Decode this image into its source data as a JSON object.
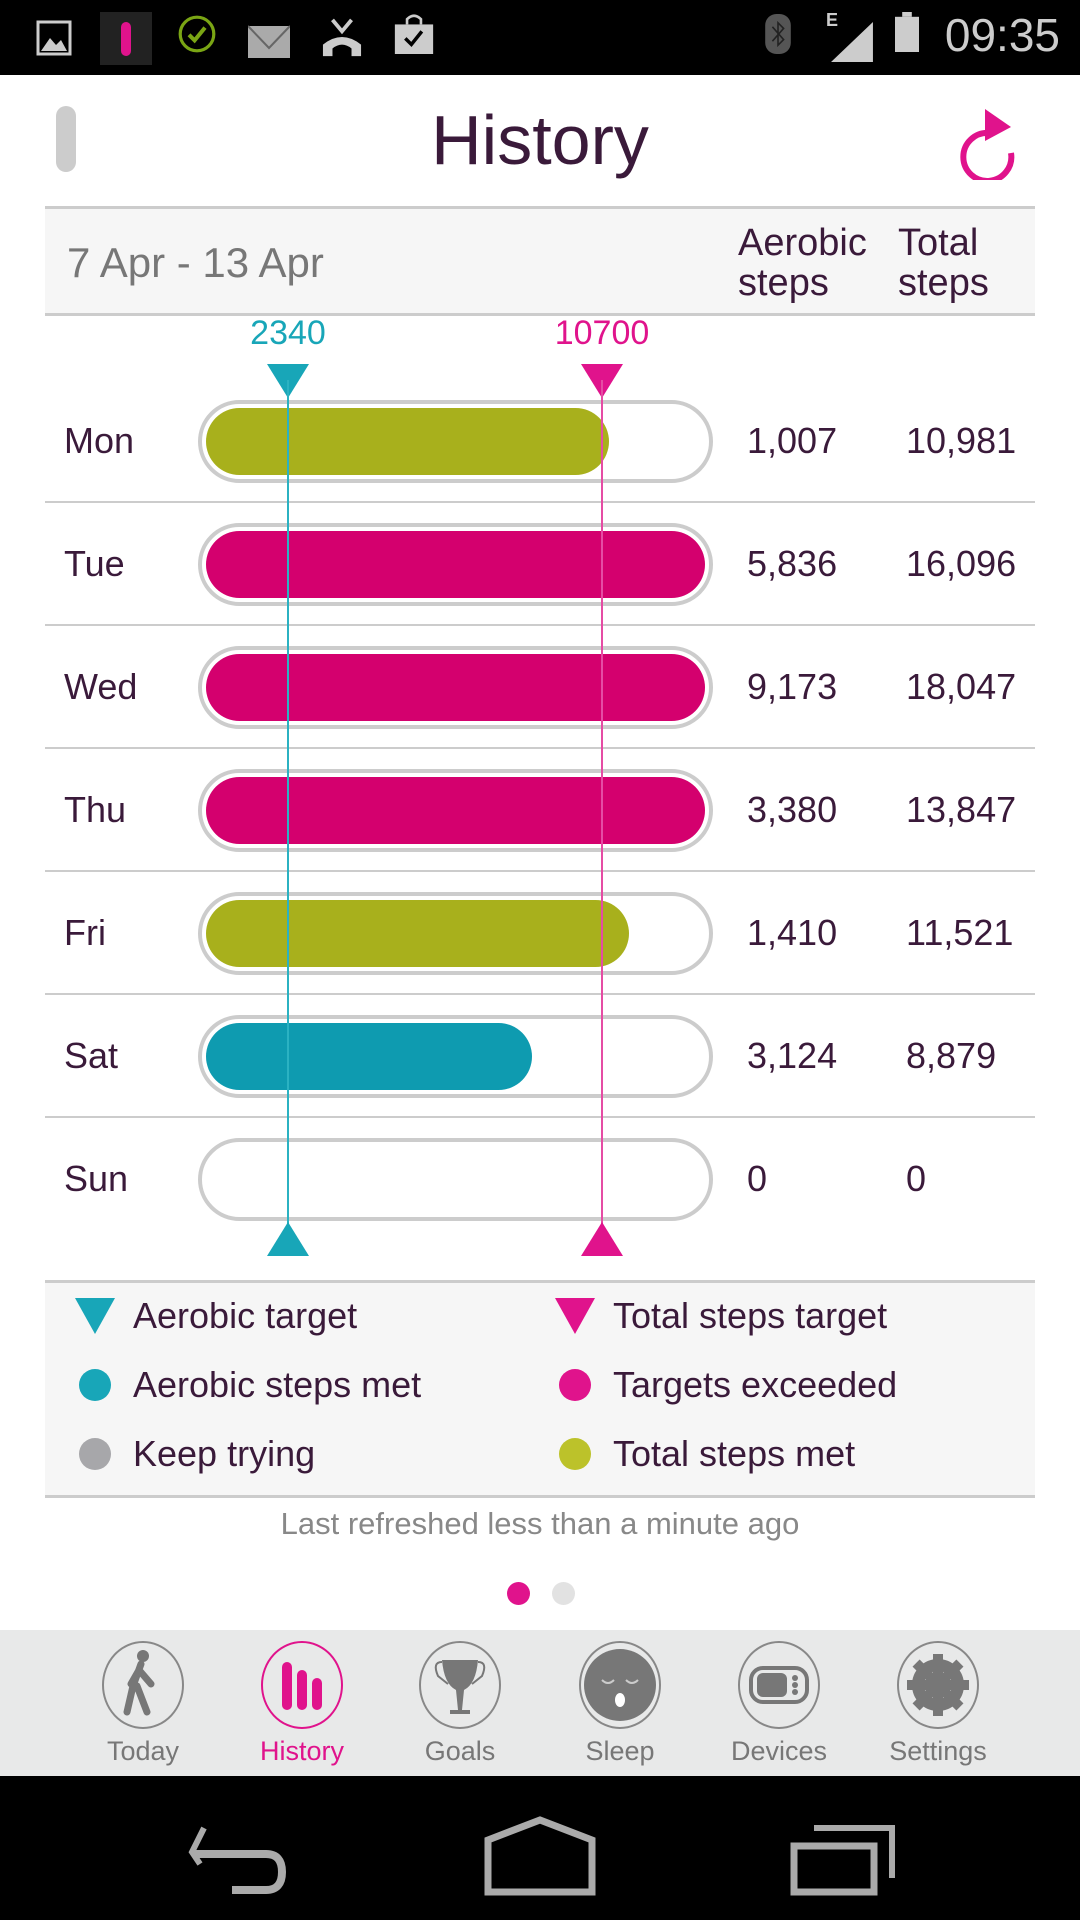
{
  "status_bar": {
    "time": "09:35",
    "network": "E",
    "icons": [
      "image-icon",
      "app-notification-icon",
      "check-circle-icon",
      "mail-icon",
      "missed-call-icon",
      "shopping-bag-icon",
      "bluetooth-icon",
      "signal-icon",
      "battery-icon"
    ]
  },
  "header": {
    "title": "History",
    "menu_icon": "drawer-handle-icon",
    "refresh_icon": "refresh-icon"
  },
  "table": {
    "date_range": "7 Apr - 13 Apr",
    "col_aerobic": "Aerobic steps",
    "col_total": "Total steps",
    "aerobic_target": "2340",
    "total_target": "10700",
    "rows": [
      {
        "day": "Mon",
        "aerobic": "1,007",
        "total": "10,981",
        "status": "total_met"
      },
      {
        "day": "Tue",
        "aerobic": "5,836",
        "total": "16,096",
        "status": "exceeded"
      },
      {
        "day": "Wed",
        "aerobic": "9,173",
        "total": "18,047",
        "status": "exceeded"
      },
      {
        "day": "Thu",
        "aerobic": "3,380",
        "total": "13,847",
        "status": "exceeded"
      },
      {
        "day": "Fri",
        "aerobic": "1,410",
        "total": "11,521",
        "status": "total_met"
      },
      {
        "day": "Sat",
        "aerobic": "3,124",
        "total": "8,879",
        "status": "aerobic_met"
      },
      {
        "day": "Sun",
        "aerobic": "0",
        "total": "0",
        "status": "keep_trying"
      }
    ]
  },
  "legend": {
    "aerobic_target": "Aerobic target",
    "total_target": "Total steps target",
    "aerobic_met": "Aerobic steps met",
    "exceeded": "Targets exceeded",
    "keep_trying": "Keep trying",
    "total_met": "Total steps met"
  },
  "colors": {
    "aerobic": "#0e9bb0",
    "pink": "#d4006e",
    "olive": "#a8b01c",
    "grey": "#a7a7aa",
    "accent": "#e0138c"
  },
  "footer": {
    "refreshed": "Last refreshed less than a minute ago",
    "page": 1,
    "pages": 2
  },
  "tabs": [
    {
      "label": "Today",
      "icon": "walking-person-icon"
    },
    {
      "label": "History",
      "icon": "bar-chart-icon",
      "active": true
    },
    {
      "label": "Goals",
      "icon": "trophy-icon"
    },
    {
      "label": "Sleep",
      "icon": "sleeping-face-icon"
    },
    {
      "label": "Devices",
      "icon": "device-icon"
    },
    {
      "label": "Settings",
      "icon": "gear-icon"
    }
  ],
  "nav": [
    "back-icon",
    "home-icon",
    "recent-apps-icon"
  ]
}
